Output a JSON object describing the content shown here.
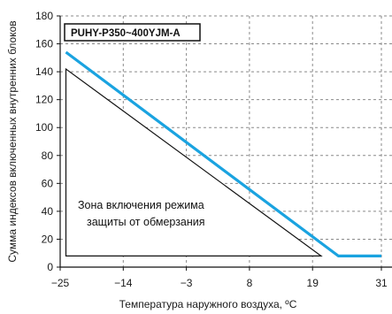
{
  "chart_data": {
    "type": "line",
    "xlabel": "Температура наружного воздуха, ºС",
    "ylabel": "Сумма индексов включенных внутренних блоков",
    "x_ticks": [
      -25,
      -14,
      -3,
      8,
      19,
      31
    ],
    "y_ticks": [
      0,
      20,
      40,
      60,
      80,
      100,
      120,
      140,
      160,
      180
    ],
    "xlim": [
      -25,
      31
    ],
    "ylim": [
      0,
      180
    ],
    "grid": true,
    "model_label": "PUHY-P350~400YJM-A",
    "series": [
      {
        "color": "#1aa3e0",
        "points": [
          [
            -24,
            154
          ],
          [
            23.5,
            8
          ],
          [
            31,
            8
          ]
        ]
      }
    ],
    "zone": {
      "label_lines": [
        "Зона включения режима",
        "защиты от обмерзания"
      ],
      "vertices": [
        [
          -24,
          142
        ],
        [
          -24,
          8
        ],
        [
          20.5,
          8
        ]
      ]
    }
  }
}
